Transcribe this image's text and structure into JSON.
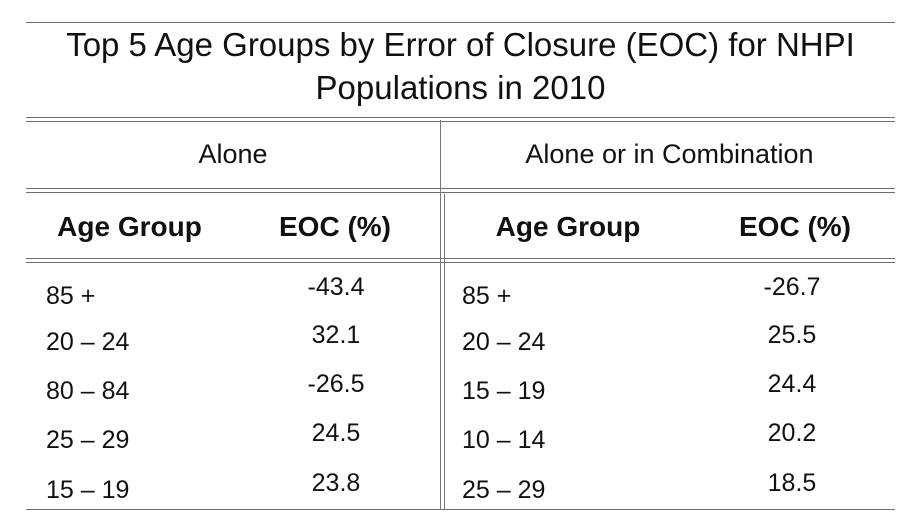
{
  "chart_data": {
    "type": "table",
    "title": "Top 5 Age Groups by Error of Closure (EOC) for NHPI Populations in 2010",
    "title_lines": [
      "Top 5 Age Groups by Error of Closure (EOC) for NHPI",
      "Populations in 2010"
    ],
    "groups": [
      {
        "name": "Alone",
        "columns": [
          "Age Group",
          "EOC (%)"
        ],
        "rows": [
          {
            "age_group": "85 +",
            "eoc": "-43.4"
          },
          {
            "age_group": "20 – 24",
            "eoc": "32.1"
          },
          {
            "age_group": "80 – 84",
            "eoc": "-26.5"
          },
          {
            "age_group": "25 – 29",
            "eoc": "24.5"
          },
          {
            "age_group": "15 – 19",
            "eoc": "23.8"
          }
        ]
      },
      {
        "name": "Alone or in Combination",
        "columns": [
          "Age Group",
          "EOC (%)"
        ],
        "rows": [
          {
            "age_group": "85 +",
            "eoc": "-26.7"
          },
          {
            "age_group": "20 – 24",
            "eoc": "25.5"
          },
          {
            "age_group": "15 – 19",
            "eoc": "24.4"
          },
          {
            "age_group": "10 – 14",
            "eoc": "20.2"
          },
          {
            "age_group": "25 – 29",
            "eoc": "18.5"
          }
        ]
      }
    ]
  }
}
